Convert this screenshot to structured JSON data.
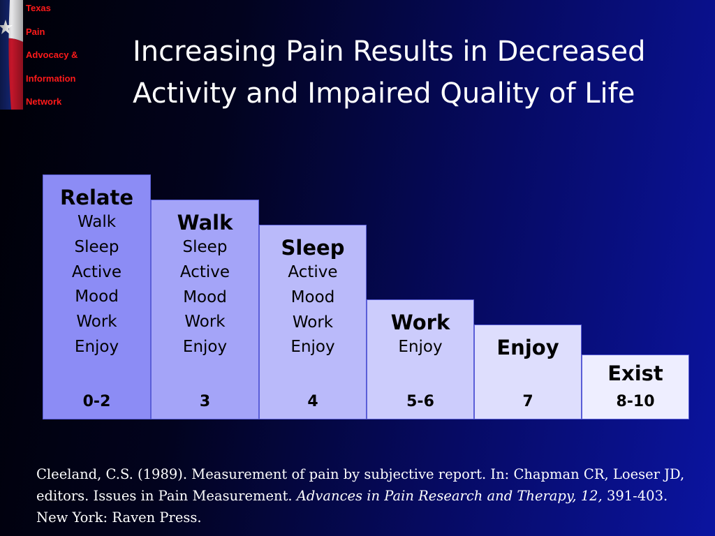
{
  "logo": {
    "lines": [
      "Texas",
      "Pain",
      "Advocacy &",
      "Information",
      "Network"
    ]
  },
  "title": {
    "line1": "Increasing Pain Results in Decreased",
    "line2": "Activity and Impaired Quality of Life"
  },
  "columns": [
    {
      "heading": "Relate",
      "items": [
        "Walk",
        "Sleep",
        "Active",
        "Mood",
        "Work",
        "Enjoy"
      ],
      "range": "0-2"
    },
    {
      "heading": "Walk",
      "items": [
        "Sleep",
        "Active",
        "Mood",
        "Work",
        "Enjoy"
      ],
      "range": "3"
    },
    {
      "heading": "Sleep",
      "items": [
        "Active",
        "Mood",
        "Work",
        "Enjoy"
      ],
      "range": "4"
    },
    {
      "heading": "Work",
      "items": [
        "Enjoy"
      ],
      "range": "5-6"
    },
    {
      "heading": "Enjoy",
      "items": [],
      "range": "7"
    },
    {
      "heading": "Exist",
      "items": [],
      "range": "8-10"
    }
  ],
  "citation": {
    "part1": "Cleeland, C.S. (1989). Measurement of pain by subjective report.  In: Chapman CR, Loeser JD, editors. Issues in Pain Measurement. ",
    "italic": "Advances in Pain Research and Therapy, 12,",
    "part2": " 391-403. New York: Raven Press."
  },
  "colors": {
    "background_dark": "#000006",
    "background_blue": "#0b14a0",
    "logo_text": "#ff1a1a",
    "column_fills": [
      "#8c8cf5",
      "#a4a4f8",
      "#babafa",
      "#ccccfc",
      "#dedefd",
      "#eeeeff"
    ]
  }
}
